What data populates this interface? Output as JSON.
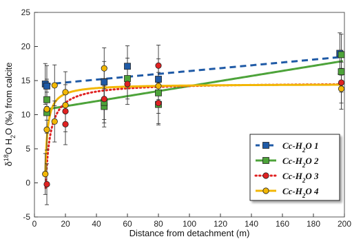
{
  "chart_data": {
    "type": "scatter",
    "xlabel": "Distance from detachment (m)",
    "ylabel": "δ18O H2O (‰) from calcite",
    "ylabel_parts": {
      "delta": "δ",
      "sup": "18",
      "mid": "O H",
      "sub": "2",
      "tail": "O (‰) from calcite"
    },
    "xlim": [
      0,
      200
    ],
    "ylim": [
      -5,
      25
    ],
    "x_ticks": [
      "0",
      "20",
      "40",
      "60",
      "80",
      "100",
      "120",
      "140",
      "160",
      "180",
      "200"
    ],
    "y_ticks": [
      "-5",
      "0",
      "5",
      "10",
      "15",
      "20",
      "25"
    ],
    "grid": false,
    "legend_position": "bottom-right",
    "series": [
      {
        "name": "Cc-H2O 1",
        "name_parts": {
          "pre": "Cc-H",
          "sub": "2",
          "post": "O 1"
        },
        "color": "#1f5aa6",
        "marker": "square",
        "line_style": "dashed",
        "points": [
          {
            "x": 7,
            "y": 14.5,
            "err": 3
          },
          {
            "x": 8,
            "y": 14.2,
            "err": 3
          },
          {
            "x": 45,
            "y": 14.8,
            "err": 3
          },
          {
            "x": 60,
            "y": 17.1,
            "err": 3
          },
          {
            "x": 80,
            "y": 15.2,
            "err": 3
          },
          {
            "x": 197,
            "y": 19.0,
            "err": 3
          }
        ],
        "fit": {
          "form": "linear",
          "a": 14.3,
          "b": 0.021
        }
      },
      {
        "name": "Cc-H2O 2",
        "name_parts": {
          "pre": "Cc-H",
          "sub": "2",
          "post": "O 2"
        },
        "color": "#4da33a",
        "marker": "square",
        "line_style": "solid",
        "points": [
          {
            "x": 8,
            "y": 12.2,
            "err": 3
          },
          {
            "x": 8,
            "y": 10.3,
            "err": 3
          },
          {
            "x": 45,
            "y": 11.2,
            "err": 3
          },
          {
            "x": 45,
            "y": 11.8,
            "err": 3
          },
          {
            "x": 60,
            "y": 15.3,
            "err": 3
          },
          {
            "x": 80,
            "y": 13.2,
            "err": 3
          },
          {
            "x": 80,
            "y": 11.5,
            "err": 3
          },
          {
            "x": 198,
            "y": 18.8,
            "err": 3
          },
          {
            "x": 198,
            "y": 16.3,
            "err": 3
          }
        ],
        "fit": {
          "form": "linear",
          "a": 10.5,
          "b": 0.037
        }
      },
      {
        "name": "Cc-H2O 3",
        "name_parts": {
          "pre": "Cc-H",
          "sub": "2",
          "post": "O 3"
        },
        "color": "#e02222",
        "marker": "circle",
        "line_style": "dotted",
        "points": [
          {
            "x": 8,
            "y": -0.2,
            "err": 3
          },
          {
            "x": 20,
            "y": 8.6,
            "err": 3
          },
          {
            "x": 20,
            "y": 10.5,
            "err": 3
          },
          {
            "x": 45,
            "y": 12.3,
            "err": 3
          },
          {
            "x": 60,
            "y": 14.5,
            "err": 3
          },
          {
            "x": 80,
            "y": 17.2,
            "err": 3
          },
          {
            "x": 80,
            "y": 11.7,
            "err": 3
          },
          {
            "x": 198,
            "y": 14.7,
            "err": 3
          }
        ],
        "fit": {
          "form": "hyperbolic",
          "x0": 7.1,
          "ymin": -1,
          "asym": 14.7,
          "k": 3.0
        }
      },
      {
        "name": "Cc-H2O 4",
        "name_parts": {
          "pre": "Cc-H",
          "sub": "2",
          "post": "O 4"
        },
        "color": "#f2b705",
        "marker": "circle",
        "line_style": "solid",
        "points": [
          {
            "x": 7,
            "y": 1.3,
            "err": 3
          },
          {
            "x": 8,
            "y": 7.8,
            "err": 3
          },
          {
            "x": 8,
            "y": 10.8,
            "err": 3
          },
          {
            "x": 13,
            "y": 9.0,
            "err": 3
          },
          {
            "x": 13,
            "y": 14.3,
            "err": 3
          },
          {
            "x": 20,
            "y": 13.3,
            "err": 3
          },
          {
            "x": 20,
            "y": 11.4,
            "err": 3
          },
          {
            "x": 45,
            "y": 16.8,
            "err": 3
          },
          {
            "x": 80,
            "y": 14.2,
            "err": 3
          },
          {
            "x": 198,
            "y": 13.8,
            "err": 3
          }
        ],
        "fit": {
          "form": "hyperbolic",
          "x0": 6.9,
          "ymin": 0.5,
          "asym": 14.5,
          "k": 1.5
        }
      }
    ]
  }
}
